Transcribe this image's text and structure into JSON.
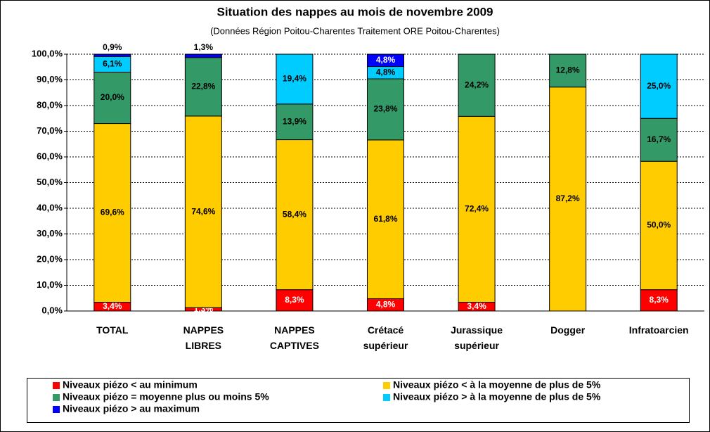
{
  "chart_data": {
    "type": "stacked_bar",
    "title": "Situation des nappes au mois de novembre 2009",
    "subtitle": "(Données Région Poitou-Charentes Traitement ORE Poitou-Charentes)",
    "categories": [
      "TOTAL",
      "NAPPES LIBRES",
      "NAPPES CAPTIVES",
      "Crétacé supérieur",
      "Jurassique supérieur",
      "Dogger",
      "Infratoarcien"
    ],
    "series": [
      {
        "name": "Niveaux piézo < au minimum",
        "color": "#ff0000",
        "values": [
          3.4,
          1.3,
          8.3,
          4.8,
          3.4,
          0,
          8.3
        ],
        "value_labels": [
          "3,4%",
          "1,3%",
          "8,3%",
          "4,8%",
          "3,4%",
          null,
          "8,3%"
        ]
      },
      {
        "name": "Niveaux piézo < à la moyenne de plus de 5%",
        "color": "#ffcc00",
        "values": [
          69.6,
          74.6,
          58.4,
          61.8,
          72.4,
          87.2,
          50.0
        ],
        "value_labels": [
          "69,6%",
          "74,6%",
          "58,4%",
          "61,8%",
          "72,4%",
          "87,2%",
          "50,0%"
        ]
      },
      {
        "name": "Niveaux piézo = moyenne plus ou moins 5%",
        "color": "#339966",
        "values": [
          20.0,
          22.8,
          13.9,
          23.8,
          24.2,
          12.8,
          16.7
        ],
        "value_labels": [
          "20,0%",
          "22,8%",
          "13,9%",
          "23,8%",
          "24,2%",
          "12,8%",
          "16,7%"
        ]
      },
      {
        "name": "Niveaux piézo > à la moyenne de plus de 5%",
        "color": "#00ccff",
        "values": [
          6.1,
          0,
          19.4,
          4.8,
          0,
          0,
          25.0
        ],
        "value_labels": [
          "6,1%",
          null,
          "19,4%",
          "4,8%",
          null,
          null,
          "25,0%"
        ]
      },
      {
        "name": "Niveaux piézo > au maximum",
        "color": "#0000ff",
        "values": [
          0.9,
          1.3,
          0,
          4.8,
          0,
          0,
          0
        ],
        "value_labels": [
          "0,9%",
          "1,3%",
          null,
          "4,8%",
          null,
          null,
          null
        ]
      }
    ],
    "ylim": [
      0,
      100
    ],
    "yticks": [
      {
        "value": 0,
        "label": "0,0%"
      },
      {
        "value": 10,
        "label": "10,0%"
      },
      {
        "value": 20,
        "label": "20,0%"
      },
      {
        "value": 30,
        "label": "30,0%"
      },
      {
        "value": 40,
        "label": "40,0%"
      },
      {
        "value": 50,
        "label": "50,0%"
      },
      {
        "value": 60,
        "label": "60,0%"
      },
      {
        "value": 70,
        "label": "70,0%"
      },
      {
        "value": 80,
        "label": "80,0%"
      },
      {
        "value": 90,
        "label": "90,0%"
      },
      {
        "value": 100,
        "label": "100,0%"
      }
    ],
    "grid": true
  }
}
